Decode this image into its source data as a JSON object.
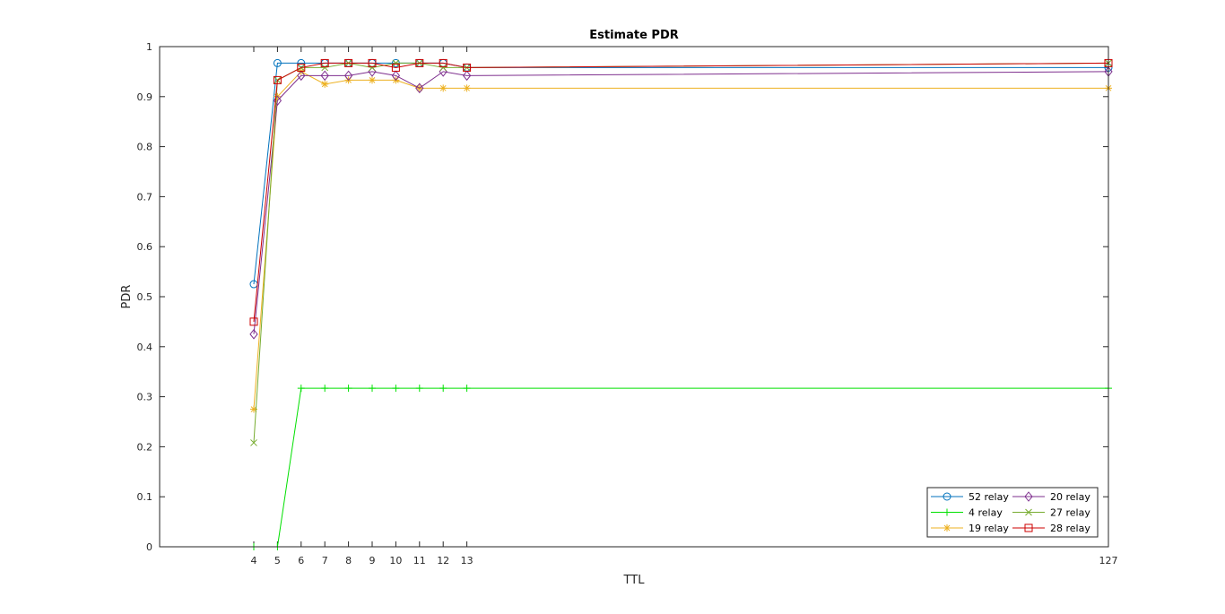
{
  "chart_data": {
    "type": "line",
    "title": "Estimate PDR",
    "xlabel": "TTL",
    "ylabel": "PDR",
    "x": [
      4,
      5,
      6,
      7,
      8,
      9,
      10,
      11,
      12,
      13,
      127
    ],
    "x_tick_labels": [
      "4",
      "5",
      "6",
      "7",
      "8",
      "9",
      "10",
      "11",
      "12",
      "13",
      "127"
    ],
    "y_ticks": [
      0,
      0.1,
      0.2,
      0.3,
      0.4,
      0.5,
      0.6,
      0.7,
      0.8,
      0.9,
      1
    ],
    "y_tick_labels": [
      "0",
      "0.1",
      "0.2",
      "0.3",
      "0.4",
      "0.5",
      "0.6",
      "0.7",
      "0.8",
      "0.9",
      "1"
    ],
    "ylim": [
      0,
      1
    ],
    "x_axis": "categorical_spaced",
    "grid": false,
    "legend_position": "bottom-right",
    "legend_columns": 2,
    "series": [
      {
        "name": "52 relay",
        "color": "#0072BD",
        "marker": "circle",
        "values": [
          0.525,
          0.967,
          0.967,
          0.967,
          0.967,
          0.967,
          0.967,
          0.967,
          0.967,
          0.958,
          0.958
        ]
      },
      {
        "name": "4 relay",
        "color": "#00E000",
        "marker": "plus",
        "values": [
          0,
          0,
          0.317,
          0.317,
          0.317,
          0.317,
          0.317,
          0.317,
          0.317,
          0.317,
          0.317
        ]
      },
      {
        "name": "19 relay",
        "color": "#EDB120",
        "marker": "asterisk",
        "values": [
          0.275,
          0.9,
          0.95,
          0.925,
          0.933,
          0.933,
          0.933,
          0.917,
          0.917,
          0.917,
          0.917
        ]
      },
      {
        "name": "20 relay",
        "color": "#7E2F8E",
        "marker": "diamond",
        "values": [
          0.425,
          0.892,
          0.942,
          0.942,
          0.942,
          0.95,
          0.942,
          0.917,
          0.95,
          0.942,
          0.95
        ]
      },
      {
        "name": "27 relay",
        "color": "#77AC30",
        "marker": "x",
        "values": [
          0.208,
          0.933,
          0.958,
          0.958,
          0.967,
          0.958,
          0.967,
          0.967,
          0.958,
          0.958,
          0.967
        ]
      },
      {
        "name": "28 relay",
        "color": "#CC0000",
        "marker": "square",
        "values": [
          0.45,
          0.933,
          0.958,
          0.967,
          0.967,
          0.967,
          0.958,
          0.967,
          0.967,
          0.958,
          0.967
        ]
      }
    ]
  }
}
